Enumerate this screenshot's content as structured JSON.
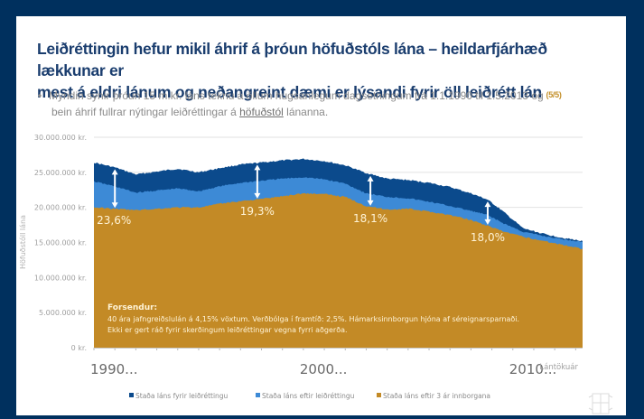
{
  "slide": {
    "title_line1": "Leiðréttingin hefur mikil áhrif á þróun höfuðstóls lána – heildarfjárhæð lækkunar er",
    "title_line2": "mest á eldri lánum og neðangreint dæmi er lýsandi fyrir öll leiðrétt lán",
    "page_indicator": "(5/5)",
    "bullet_line1": "Myndin sýnir þróun 15 m.kr. láns teknu á öllum hugsanlegum dagsetningum frá 1.1.1990 til 1.5.2013 og",
    "bullet_line2_pre": "bein áhrif fullrar nýtingar leiðréttingar á ",
    "bullet_line2_link": "höfuðstól",
    "bullet_line2_post": " lánanna.",
    "bullet_marker": "•"
  },
  "colors": {
    "background": "#00305e",
    "title": "#1a3d6e",
    "before": "#0b4a8c",
    "after": "#3d8ad6",
    "after3": "#c38a26",
    "arrow": "#ffffff"
  },
  "chart_data": {
    "type": "area",
    "title": "",
    "xlabel": "Lántökuár",
    "ylabel": "Höfuðstóll lána",
    "ylim": [
      0,
      30000000
    ],
    "yticks": [
      0,
      5000000,
      10000000,
      15000000,
      20000000,
      25000000,
      30000000
    ],
    "ytick_labels": [
      "0 kr.",
      "5.000.000 kr.",
      "10.000.000 kr.",
      "15.000.000 kr.",
      "20.000.000 kr.",
      "25.000.000 kr.",
      "30.000.000 kr."
    ],
    "xlim": [
      1990.0,
      2013.33
    ],
    "xtick_labels": [
      {
        "x": 1990,
        "label": "1990..."
      },
      {
        "x": 2000,
        "label": "2000..."
      },
      {
        "x": 2010,
        "label": "2010..."
      }
    ],
    "grid": true,
    "legend_position": "bottom",
    "x": [
      1990.0,
      1991.0,
      1992.0,
      1993.0,
      1994.0,
      1995.0,
      1996.0,
      1997.0,
      1998.0,
      1999.0,
      2000.0,
      2001.0,
      2002.0,
      2003.0,
      2004.0,
      2005.0,
      2006.0,
      2007.0,
      2008.0,
      2008.8,
      2009.5,
      2010.5,
      2011.5,
      2012.5,
      2013.33
    ],
    "series": [
      {
        "name": "Staða láns fyrir leiðréttingu",
        "color": "#0b4a8c",
        "values": [
          26400000,
          25700000,
          24700000,
          25100000,
          25500000,
          25000000,
          25600000,
          26100000,
          26400000,
          26700000,
          26900000,
          26600000,
          26000000,
          24900000,
          24100000,
          23900000,
          23500000,
          22900000,
          22000000,
          21100000,
          19500000,
          17000000,
          16200000,
          15600000,
          15200000
        ]
      },
      {
        "name": "Staða láns eftir leiðréttingu",
        "color": "#3d8ad6",
        "values": [
          23700000,
          23000000,
          22100000,
          22400000,
          22700000,
          22300000,
          23000000,
          23500000,
          23800000,
          24100000,
          24300000,
          24000000,
          23400000,
          22000000,
          21500000,
          21300000,
          20800000,
          20200000,
          19500000,
          18900000,
          17800000,
          16500000,
          15900000,
          15400000,
          15100000
        ]
      },
      {
        "name": "Staða láns eftir 3 ár innborgana",
        "color": "#c38a26",
        "values": [
          20000000,
          19800000,
          19600000,
          19800000,
          20000000,
          20000000,
          20500000,
          20900000,
          21200000,
          21600000,
          22000000,
          21900000,
          21500000,
          20200000,
          19700000,
          19800000,
          19400000,
          18900000,
          18200000,
          17400000,
          16600000,
          15800000,
          15200000,
          14600000,
          14100000
        ]
      }
    ],
    "annotations": [
      {
        "x": 1991.0,
        "label": "23,6%"
      },
      {
        "x": 1997.8,
        "label": "19,3%"
      },
      {
        "x": 2003.2,
        "label": "18,1%"
      },
      {
        "x": 2008.8,
        "label": "18,0%"
      }
    ],
    "assumptions_box": {
      "heading": "Forsendur:",
      "line1": "40 ára jafngreiðslulán á 4,15% vöxtum. Verðbólga í framtíð: 2,5%.  Hámarksinnborgun hjóna af séreignarsparnaði.",
      "line2": "Ekki er gert ráð fyrir skerðingum leiðréttingar vegna fyrri aðgerða."
    }
  }
}
